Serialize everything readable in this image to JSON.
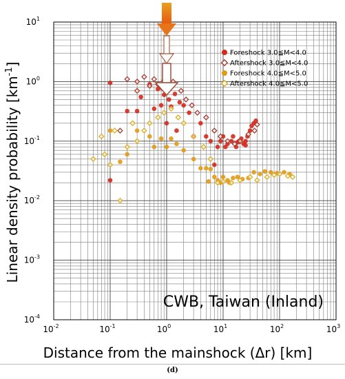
{
  "chart_data": {
    "type": "scatter",
    "x_scale": "log",
    "y_scale": "log",
    "xlim": [
      0.01,
      1000
    ],
    "ylim": [
      0.0001,
      10
    ],
    "x_ticks": [
      0.01,
      0.1,
      1,
      10,
      100,
      1000
    ],
    "y_ticks": [
      0.0001,
      0.001,
      0.01,
      0.1,
      1,
      10
    ],
    "x_tick_labels": [
      {
        "base": "10",
        "exp": "-2"
      },
      {
        "base": "10",
        "exp": "-1"
      },
      {
        "base": "10",
        "exp": "0"
      },
      {
        "base": "10",
        "exp": "1"
      },
      {
        "base": "10",
        "exp": "2"
      },
      {
        "base": "10",
        "exp": "3"
      }
    ],
    "y_tick_labels": [
      {
        "base": "10",
        "exp": "-4"
      },
      {
        "base": "10",
        "exp": "-3"
      },
      {
        "base": "10",
        "exp": "-2"
      },
      {
        "base": "10",
        "exp": "-1"
      },
      {
        "base": "10",
        "exp": "0"
      },
      {
        "base": "10",
        "exp": "1"
      }
    ],
    "xlabel": "Distance from the mainshock (Δr) [km]",
    "ylabel": "Linear density probability [km",
    "ylabel_exp": "-1",
    "ylabel_close": "]",
    "grid": true,
    "legend_position": "top-right",
    "annotation": "CWB, Taiwan (Inland)",
    "series": [
      {
        "name": "Foreshock 3.0≦M<4.0",
        "marker": "circle",
        "color": "#d42a1e",
        "points": [
          [
            0.1,
            0.95
          ],
          [
            0.1,
            0.022
          ],
          [
            0.2,
            0.32
          ],
          [
            0.3,
            0.32
          ],
          [
            0.35,
            0.55
          ],
          [
            0.5,
            0.9
          ],
          [
            0.6,
            0.35
          ],
          [
            0.7,
            0.75
          ],
          [
            0.8,
            0.4
          ],
          [
            0.9,
            0.6
          ],
          [
            1.0,
            0.2
          ],
          [
            1.1,
            0.5
          ],
          [
            1.2,
            0.38
          ],
          [
            1.4,
            0.62
          ],
          [
            1.5,
            0.15
          ],
          [
            1.7,
            0.45
          ],
          [
            2.0,
            0.4
          ],
          [
            2.5,
            0.3
          ],
          [
            3.0,
            0.12
          ],
          [
            4.0,
            0.2
          ],
          [
            5.0,
            0.12
          ],
          [
            6.0,
            0.1
          ],
          [
            7.0,
            0.04
          ],
          [
            8.0,
            0.08
          ],
          [
            9.0,
            0.1
          ],
          [
            10,
            0.12
          ],
          [
            11,
            0.08
          ],
          [
            12,
            0.09
          ],
          [
            14,
            0.1
          ],
          [
            15,
            0.12
          ],
          [
            17,
            0.08
          ],
          [
            19,
            0.1
          ],
          [
            21,
            0.11
          ],
          [
            23,
            0.09
          ],
          [
            25,
            0.1
          ],
          [
            27,
            0.12
          ],
          [
            30,
            0.15
          ],
          [
            32,
            0.18
          ],
          [
            35,
            0.2
          ],
          [
            38,
            0.22
          ],
          [
            25,
            0.085
          ],
          [
            18,
            0.095
          ]
        ]
      },
      {
        "name": "Aftershock 3.0≦M<4.0",
        "marker": "diamond",
        "color": "#a8392e",
        "points": [
          [
            0.2,
            1.1
          ],
          [
            0.3,
            1.0
          ],
          [
            0.4,
            1.2
          ],
          [
            0.5,
            0.85
          ],
          [
            0.6,
            1.1
          ],
          [
            0.7,
            0.9
          ],
          [
            0.8,
            0.8
          ],
          [
            0.9,
            1.05
          ],
          [
            1.1,
            0.8
          ],
          [
            1.3,
            1.0
          ],
          [
            0.15,
            0.15
          ],
          [
            0.3,
            0.7
          ],
          [
            1.8,
            0.7
          ],
          [
            2.2,
            0.5
          ],
          [
            2.8,
            0.4
          ],
          [
            3.5,
            0.3
          ],
          [
            5.0,
            0.25
          ],
          [
            7.0,
            0.15
          ],
          [
            9.0,
            0.12
          ],
          [
            12,
            0.1
          ],
          [
            16,
            0.09
          ],
          [
            20,
            0.1
          ],
          [
            28,
            0.13
          ],
          [
            36,
            0.15
          ],
          [
            40,
            0.19
          ]
        ]
      },
      {
        "name": "Foreshock 4.0≦M<5.0",
        "marker": "circle",
        "color": "#e09a1a",
        "points": [
          [
            0.1,
            0.15
          ],
          [
            0.15,
            0.045
          ],
          [
            0.2,
            0.06
          ],
          [
            0.3,
            0.15
          ],
          [
            0.5,
            0.12
          ],
          [
            0.6,
            0.08
          ],
          [
            0.8,
            0.11
          ],
          [
            1.0,
            0.08
          ],
          [
            1.2,
            0.11
          ],
          [
            1.5,
            0.09
          ],
          [
            2.0,
            0.07
          ],
          [
            3.0,
            0.05
          ],
          [
            4.0,
            0.035
          ],
          [
            5.0,
            0.035
          ],
          [
            6.0,
            0.034
          ],
          [
            7.0,
            0.025
          ],
          [
            8.0,
            0.022
          ],
          [
            9.0,
            0.02
          ],
          [
            10,
            0.025
          ],
          [
            12,
            0.022
          ],
          [
            15,
            0.024
          ],
          [
            18,
            0.025
          ],
          [
            22,
            0.023
          ],
          [
            28,
            0.024
          ],
          [
            35,
            0.03
          ],
          [
            45,
            0.028
          ],
          [
            55,
            0.031
          ],
          [
            70,
            0.03
          ],
          [
            90,
            0.029
          ],
          [
            120,
            0.03
          ],
          [
            150,
            0.028
          ],
          [
            5.5,
            0.021
          ],
          [
            13,
            0.02
          ]
        ]
      },
      {
        "name": "Aftershock 4.0≦M<5.0",
        "marker": "diamond",
        "color": "#dcae1e",
        "points": [
          [
            0.05,
            0.05
          ],
          [
            0.07,
            0.12
          ],
          [
            0.08,
            0.06
          ],
          [
            0.1,
            0.04
          ],
          [
            0.12,
            0.15
          ],
          [
            0.15,
            0.01
          ],
          [
            0.2,
            0.08
          ],
          [
            0.25,
            0.2
          ],
          [
            0.3,
            0.1
          ],
          [
            0.4,
            0.15
          ],
          [
            0.5,
            0.2
          ],
          [
            0.7,
            0.25
          ],
          [
            0.9,
            0.3
          ],
          [
            1.2,
            0.35
          ],
          [
            1.6,
            0.25
          ],
          [
            2.0,
            0.2
          ],
          [
            3.0,
            0.12
          ],
          [
            4.5,
            0.08
          ],
          [
            6.0,
            0.05
          ],
          [
            8.0,
            0.02
          ],
          [
            10,
            0.021
          ],
          [
            14,
            0.02
          ],
          [
            20,
            0.022
          ],
          [
            30,
            0.025
          ],
          [
            40,
            0.022
          ],
          [
            60,
            0.025
          ],
          [
            80,
            0.027
          ],
          [
            100,
            0.028
          ],
          [
            140,
            0.026
          ],
          [
            170,
            0.025
          ]
        ]
      }
    ]
  },
  "caption": "(d)"
}
